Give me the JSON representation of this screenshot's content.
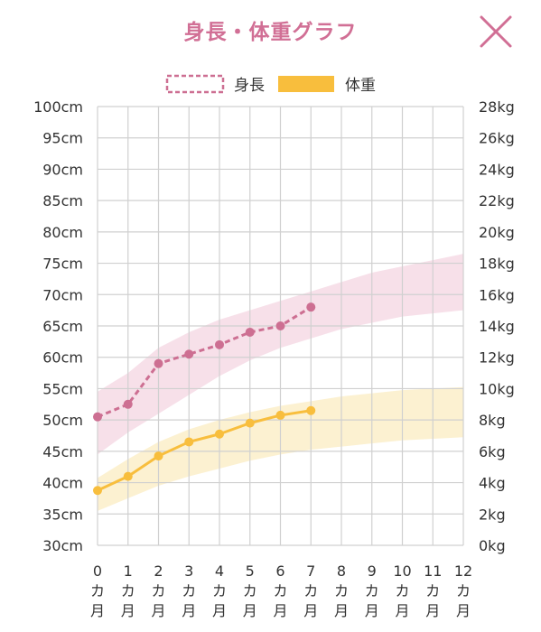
{
  "header": {
    "title": "身長・体重グラフ",
    "close_icon": "close-icon"
  },
  "colors": {
    "title": "#d16f95",
    "height_line": "#cd6f92",
    "height_band": "#f6dbe5",
    "weight_line": "#f8be3d",
    "weight_band": "#fcefc9",
    "grid": "#d0d0d0"
  },
  "chart_data": {
    "type": "line",
    "legend": [
      {
        "name": "身長",
        "style": "dashed-outline"
      },
      {
        "name": "体重",
        "style": "solid-fill"
      }
    ],
    "legend_position": "top-center",
    "x": [
      0,
      1,
      2,
      3,
      4,
      5,
      6,
      7,
      8,
      9,
      10,
      11,
      12
    ],
    "xlim": [
      0,
      12
    ],
    "x_tick_labels": [
      [
        "0",
        "カ",
        "月"
      ],
      [
        "1",
        "カ",
        "月"
      ],
      [
        "2",
        "カ",
        "月"
      ],
      [
        "3",
        "カ",
        "月"
      ],
      [
        "4",
        "カ",
        "月"
      ],
      [
        "5",
        "カ",
        "月"
      ],
      [
        "6",
        "カ",
        "月"
      ],
      [
        "7",
        "カ",
        "月"
      ],
      [
        "8",
        "カ",
        "月"
      ],
      [
        "9",
        "カ",
        "月"
      ],
      [
        "10",
        "カ",
        "月"
      ],
      [
        "11",
        "カ",
        "月"
      ],
      [
        "12",
        "カ",
        "月"
      ]
    ],
    "y_left": {
      "unit": "cm",
      "ylim": [
        30,
        100
      ],
      "step": 5,
      "tick_labels": [
        "30cm",
        "35cm",
        "40cm",
        "45cm",
        "50cm",
        "55cm",
        "60cm",
        "65cm",
        "70cm",
        "75cm",
        "80cm",
        "85cm",
        "90cm",
        "95cm",
        "100cm"
      ]
    },
    "y_right": {
      "unit": "kg",
      "ylim": [
        0,
        28
      ],
      "step": 2,
      "tick_labels": [
        "0kg",
        "2kg",
        "4kg",
        "6kg",
        "8kg",
        "10kg",
        "12kg",
        "14kg",
        "16kg",
        "18kg",
        "20kg",
        "22kg",
        "24kg",
        "26kg",
        "28kg"
      ]
    },
    "grid": true,
    "series": [
      {
        "name": "身長",
        "axis": "left",
        "style": "dashed",
        "x": [
          0,
          1,
          2,
          3,
          4,
          5,
          6,
          7
        ],
        "values": [
          50.5,
          52.5,
          59,
          60.5,
          62,
          64,
          65,
          68
        ]
      },
      {
        "name": "体重",
        "axis": "right",
        "style": "solid",
        "x": [
          0,
          1,
          2,
          3,
          4,
          5,
          6,
          7
        ],
        "values": [
          3.5,
          4.4,
          5.7,
          6.6,
          7.1,
          7.8,
          8.3,
          8.6
        ]
      }
    ],
    "bands": [
      {
        "series": "身長",
        "axis": "left",
        "x": [
          0,
          1,
          2,
          3,
          4,
          5,
          6,
          7,
          8,
          9,
          10,
          11,
          12
        ],
        "upper": [
          54.5,
          57.5,
          61.5,
          64,
          66,
          67.5,
          69,
          70.5,
          72,
          73.5,
          74.5,
          75.5,
          76.5
        ],
        "lower": [
          44.5,
          48,
          51,
          54,
          57,
          59.5,
          61.5,
          63,
          64.5,
          65.5,
          66.5,
          67,
          67.5
        ]
      },
      {
        "series": "体重",
        "axis": "right",
        "x": [
          0,
          1,
          2,
          3,
          4,
          5,
          6,
          7,
          8,
          9,
          10,
          11,
          12
        ],
        "upper": [
          4.3,
          5.5,
          6.6,
          7.4,
          8.0,
          8.5,
          8.9,
          9.2,
          9.5,
          9.7,
          9.9,
          10.0,
          10.1
        ],
        "lower": [
          2.2,
          3.0,
          3.8,
          4.4,
          4.9,
          5.4,
          5.8,
          6.1,
          6.3,
          6.5,
          6.7,
          6.8,
          6.9
        ]
      }
    ]
  }
}
